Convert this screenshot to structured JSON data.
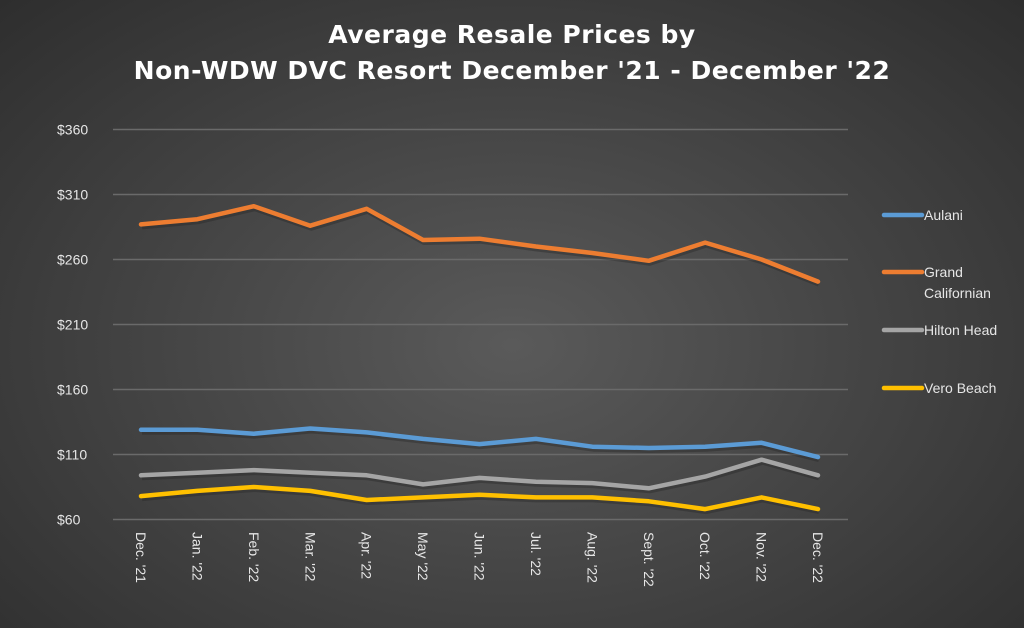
{
  "chart_data": {
    "type": "line",
    "title_line1": "Average Resale Prices by",
    "title_line2": "Non-WDW DVC Resort December '21 - December '22",
    "xlabel": "",
    "ylabel": "",
    "categories": [
      "Dec. '21",
      "Jan. '22",
      "Feb. '22",
      "Mar. '22",
      "Apr. '22",
      "May '22",
      "Jun. '22",
      "Jul. '22",
      "Aug. '22",
      "Sept. '22",
      "Oct. '22",
      "Nov. '22",
      "Dec. '22"
    ],
    "ylim": [
      60,
      360
    ],
    "yticks": [
      60,
      110,
      160,
      210,
      260,
      310,
      360
    ],
    "ytick_labels": [
      "$60",
      "$110",
      "$160",
      "$210",
      "$260",
      "$310",
      "$360"
    ],
    "grid": true,
    "legend_position": "right",
    "series": [
      {
        "name": "Aulani",
        "color": "#5b9bd5",
        "values": [
          129,
          129,
          126,
          130,
          127,
          122,
          118,
          122,
          116,
          115,
          116,
          119,
          108
        ]
      },
      {
        "name": "Grand Californian",
        "color": "#ed7d31",
        "values": [
          287,
          291,
          301,
          286,
          299,
          275,
          276,
          270,
          265,
          259,
          273,
          260,
          243
        ]
      },
      {
        "name": "Hilton Head",
        "color": "#a5a5a5",
        "values": [
          94,
          96,
          98,
          96,
          94,
          87,
          92,
          89,
          88,
          84,
          93,
          106,
          94
        ]
      },
      {
        "name": "Vero Beach",
        "color": "#ffc000",
        "values": [
          78,
          82,
          85,
          82,
          75,
          77,
          79,
          77,
          77,
          74,
          68,
          77,
          68
        ]
      }
    ]
  }
}
